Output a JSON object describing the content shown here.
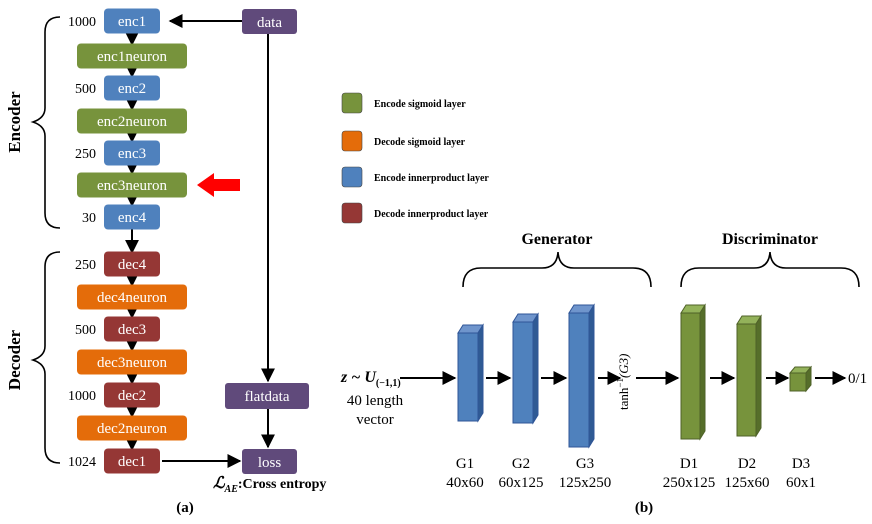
{
  "panel_a": {
    "section_labels": {
      "encoder": "Encoder",
      "decoder": "Decoder"
    },
    "data_box": "data",
    "flatdata_box": "flatdata",
    "loss_box": "loss",
    "loss_caption_symbol": "ℒ",
    "loss_caption_subscript": "AE",
    "loss_caption_text": ":Cross entropy",
    "caption": "(a)",
    "layers": [
      {
        "label": "enc1",
        "kind": "enc-ip",
        "size": "1000"
      },
      {
        "label": "enc1neuron",
        "kind": "enc-sig",
        "size": ""
      },
      {
        "label": "enc2",
        "kind": "enc-ip",
        "size": "500"
      },
      {
        "label": "enc2neuron",
        "kind": "enc-sig",
        "size": ""
      },
      {
        "label": "enc3",
        "kind": "enc-ip",
        "size": "250"
      },
      {
        "label": "enc3neuron",
        "kind": "enc-sig",
        "size": ""
      },
      {
        "label": "enc4",
        "kind": "enc-ip",
        "size": "30"
      },
      {
        "label": "dec4",
        "kind": "dec-ip",
        "size": "250"
      },
      {
        "label": "dec4neuron",
        "kind": "dec-sig",
        "size": ""
      },
      {
        "label": "dec3",
        "kind": "dec-ip",
        "size": "500"
      },
      {
        "label": "dec3neuron",
        "kind": "dec-sig",
        "size": ""
      },
      {
        "label": "dec2",
        "kind": "dec-ip",
        "size": "1000"
      },
      {
        "label": "dec2neuron",
        "kind": "dec-sig",
        "size": ""
      },
      {
        "label": "dec1",
        "kind": "dec-ip",
        "size": "1024"
      }
    ],
    "highlighted_layer": "enc3neuron"
  },
  "legend": [
    {
      "label": "Encode sigmoid layer",
      "color": "#77933c"
    },
    {
      "label": "Decode sigmoid layer",
      "color": "#e46c0a"
    },
    {
      "label": "Encode innerproduct layer",
      "color": "#4f81bd"
    },
    {
      "label": "Decode innerproduct layer",
      "color": "#953735"
    }
  ],
  "colors": {
    "enc_ip": "#4f81bd",
    "enc_sig": "#77933c",
    "dec_ip": "#953735",
    "dec_sig": "#e46c0a",
    "io": "#604a7b",
    "highlight_arrow": "#ff0000"
  },
  "panel_b": {
    "generator_title": "Generator",
    "discriminator_title": "Discriminator",
    "input_z": "z ~ ",
    "input_u": "U",
    "input_u_subscript": "(−1,1)",
    "input_desc_line1": "40 length",
    "input_desc_line2": "vector",
    "transform_label": "tanh",
    "transform_superscript": "−1",
    "transform_arg": "(G3)",
    "output_label": "0/1",
    "caption": "(b)",
    "generator_layers": [
      {
        "name": "G1",
        "size": "40x60"
      },
      {
        "name": "G2",
        "size": "60x125"
      },
      {
        "name": "G3",
        "size": "125x250"
      }
    ],
    "discriminator_layers": [
      {
        "name": "D1",
        "size": "250x125"
      },
      {
        "name": "D2",
        "size": "125x60"
      },
      {
        "name": "D3",
        "size": "60x1"
      }
    ]
  }
}
